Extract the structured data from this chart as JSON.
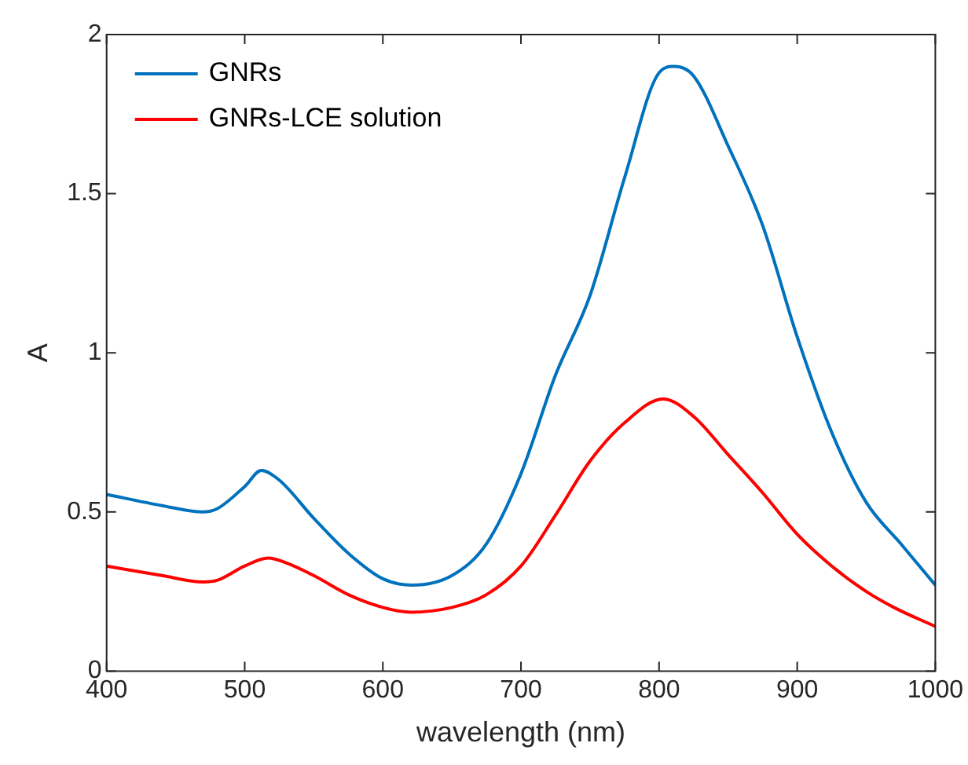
{
  "chart_data": {
    "type": "line",
    "xlabel": "wavelength (nm)",
    "ylabel": "A",
    "xlim": [
      400,
      1000
    ],
    "xticks": [
      400,
      500,
      600,
      700,
      800,
      900,
      1000
    ],
    "ylim": [
      0,
      2
    ],
    "yticks": [
      0,
      0.5,
      1,
      1.5,
      2
    ],
    "legend": "top left",
    "grid": false,
    "marker": "none",
    "line_style": "solid",
    "series": [
      {
        "name": "GNRs",
        "color": "#0072bd",
        "x": [
          400,
          440,
          470,
          480,
          500,
          512,
          525,
          550,
          575,
          600,
          621,
          650,
          675,
          700,
          725,
          750,
          775,
          800,
          811,
          825,
          850,
          875,
          900,
          925,
          950,
          975,
          1000
        ],
        "values": [
          0.555,
          0.52,
          0.5,
          0.51,
          0.58,
          0.63,
          0.6,
          0.48,
          0.37,
          0.29,
          0.27,
          0.3,
          0.4,
          0.62,
          0.93,
          1.18,
          1.55,
          1.88,
          1.9,
          1.87,
          1.65,
          1.4,
          1.05,
          0.75,
          0.53,
          0.4,
          0.27
        ]
      },
      {
        "name": "GNRs-LCE solution",
        "color": "#ff0000",
        "x": [
          400,
          440,
          470,
          480,
          500,
          517,
          530,
          550,
          575,
          600,
          620,
          650,
          675,
          700,
          725,
          750,
          775,
          803,
          825,
          850,
          875,
          900,
          925,
          950,
          970,
          1000
        ],
        "values": [
          0.33,
          0.3,
          0.28,
          0.285,
          0.33,
          0.355,
          0.34,
          0.3,
          0.24,
          0.2,
          0.185,
          0.2,
          0.24,
          0.33,
          0.49,
          0.66,
          0.78,
          0.855,
          0.8,
          0.68,
          0.56,
          0.43,
          0.33,
          0.25,
          0.2,
          0.14
        ]
      }
    ]
  }
}
